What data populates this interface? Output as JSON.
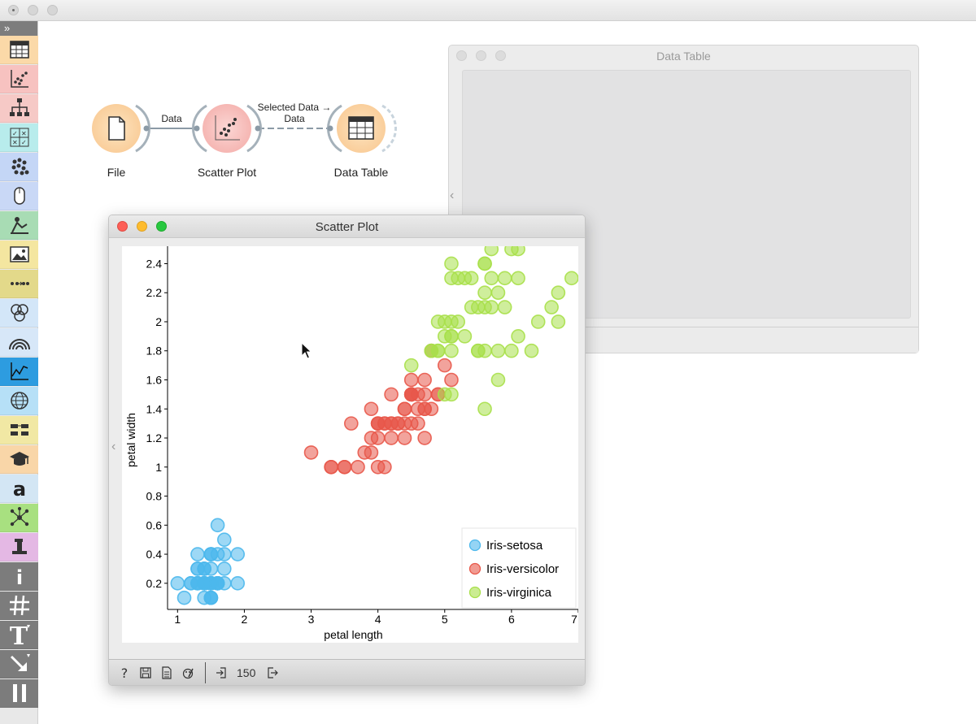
{
  "colors": {
    "setosa": "#4db8ec",
    "versicolor": "#e8584a",
    "virginica": "#a8e04a",
    "file_node": "#fbd9a8",
    "scatter_node": "#f7c2c0",
    "table_node": "#fbd9a8"
  },
  "canvas": {
    "nodes": [
      {
        "label": "File",
        "icon": "file-icon"
      },
      {
        "label": "Scatter Plot",
        "icon": "scatter-plot-icon"
      },
      {
        "label": "Data Table",
        "icon": "table-icon"
      }
    ],
    "links": [
      {
        "label": "Data"
      },
      {
        "label_line1": "Selected Data →",
        "label_line2": "Data"
      }
    ]
  },
  "data_table_window": {
    "title": "Data Table"
  },
  "scatter_window": {
    "title": "Scatter Plot",
    "footer": {
      "count": "150"
    }
  },
  "chart_data": {
    "type": "scatter",
    "xlabel": "petal length",
    "ylabel": "petal width",
    "xlim": [
      0.85,
      7.0
    ],
    "ylim": [
      0.02,
      2.52
    ],
    "xticks": [
      1,
      2,
      3,
      4,
      5,
      6,
      7
    ],
    "yticks": [
      0.2,
      0.4,
      0.6,
      0.8,
      1,
      1.2,
      1.4,
      1.6,
      1.8,
      2,
      2.2,
      2.4
    ],
    "legend_position": "bottom-right",
    "series": [
      {
        "name": "Iris-setosa",
        "points": [
          [
            1.4,
            0.2
          ],
          [
            1.4,
            0.2
          ],
          [
            1.3,
            0.2
          ],
          [
            1.5,
            0.2
          ],
          [
            1.4,
            0.2
          ],
          [
            1.7,
            0.4
          ],
          [
            1.4,
            0.3
          ],
          [
            1.5,
            0.2
          ],
          [
            1.4,
            0.2
          ],
          [
            1.5,
            0.1
          ],
          [
            1.5,
            0.2
          ],
          [
            1.6,
            0.2
          ],
          [
            1.4,
            0.1
          ],
          [
            1.1,
            0.1
          ],
          [
            1.2,
            0.2
          ],
          [
            1.5,
            0.4
          ],
          [
            1.3,
            0.4
          ],
          [
            1.4,
            0.3
          ],
          [
            1.7,
            0.3
          ],
          [
            1.5,
            0.3
          ],
          [
            1.7,
            0.2
          ],
          [
            1.5,
            0.4
          ],
          [
            1.0,
            0.2
          ],
          [
            1.7,
            0.5
          ],
          [
            1.9,
            0.2
          ],
          [
            1.6,
            0.2
          ],
          [
            1.6,
            0.4
          ],
          [
            1.5,
            0.2
          ],
          [
            1.4,
            0.2
          ],
          [
            1.6,
            0.2
          ],
          [
            1.6,
            0.2
          ],
          [
            1.5,
            0.4
          ],
          [
            1.5,
            0.1
          ],
          [
            1.4,
            0.2
          ],
          [
            1.5,
            0.1
          ],
          [
            1.2,
            0.2
          ],
          [
            1.3,
            0.2
          ],
          [
            1.5,
            0.1
          ],
          [
            1.3,
            0.2
          ],
          [
            1.5,
            0.2
          ],
          [
            1.3,
            0.3
          ],
          [
            1.3,
            0.3
          ],
          [
            1.3,
            0.2
          ],
          [
            1.6,
            0.6
          ],
          [
            1.9,
            0.4
          ],
          [
            1.4,
            0.3
          ],
          [
            1.6,
            0.2
          ],
          [
            1.4,
            0.2
          ],
          [
            1.5,
            0.2
          ],
          [
            1.4,
            0.2
          ]
        ]
      },
      {
        "name": "Iris-versicolor",
        "points": [
          [
            4.7,
            1.4
          ],
          [
            4.5,
            1.5
          ],
          [
            4.9,
            1.5
          ],
          [
            4.0,
            1.3
          ],
          [
            4.6,
            1.5
          ],
          [
            4.5,
            1.3
          ],
          [
            4.7,
            1.6
          ],
          [
            3.3,
            1.0
          ],
          [
            4.6,
            1.3
          ],
          [
            3.9,
            1.4
          ],
          [
            3.5,
            1.0
          ],
          [
            4.2,
            1.5
          ],
          [
            4.0,
            1.0
          ],
          [
            4.7,
            1.4
          ],
          [
            3.6,
            1.3
          ],
          [
            4.4,
            1.4
          ],
          [
            4.5,
            1.5
          ],
          [
            4.1,
            1.0
          ],
          [
            4.5,
            1.5
          ],
          [
            3.9,
            1.1
          ],
          [
            4.8,
            1.8
          ],
          [
            4.0,
            1.3
          ],
          [
            4.9,
            1.5
          ],
          [
            4.7,
            1.2
          ],
          [
            4.3,
            1.3
          ],
          [
            4.4,
            1.4
          ],
          [
            4.8,
            1.4
          ],
          [
            5.0,
            1.7
          ],
          [
            4.5,
            1.5
          ],
          [
            3.5,
            1.0
          ],
          [
            3.8,
            1.1
          ],
          [
            3.7,
            1.0
          ],
          [
            3.9,
            1.2
          ],
          [
            5.1,
            1.6
          ],
          [
            4.5,
            1.5
          ],
          [
            4.5,
            1.6
          ],
          [
            4.7,
            1.5
          ],
          [
            4.4,
            1.3
          ],
          [
            4.1,
            1.3
          ],
          [
            4.0,
            1.3
          ],
          [
            4.4,
            1.2
          ],
          [
            4.6,
            1.4
          ],
          [
            4.0,
            1.2
          ],
          [
            3.3,
            1.0
          ],
          [
            4.2,
            1.3
          ],
          [
            4.2,
            1.2
          ],
          [
            4.2,
            1.3
          ],
          [
            4.3,
            1.3
          ],
          [
            3.0,
            1.1
          ],
          [
            4.1,
            1.3
          ]
        ]
      },
      {
        "name": "Iris-virginica",
        "points": [
          [
            6.0,
            2.5
          ],
          [
            5.1,
            1.9
          ],
          [
            5.9,
            2.1
          ],
          [
            5.6,
            1.8
          ],
          [
            5.8,
            2.2
          ],
          [
            6.6,
            2.1
          ],
          [
            4.5,
            1.7
          ],
          [
            6.3,
            1.8
          ],
          [
            5.8,
            1.8
          ],
          [
            6.1,
            2.5
          ],
          [
            5.1,
            2.0
          ],
          [
            5.3,
            1.9
          ],
          [
            5.5,
            2.1
          ],
          [
            5.0,
            2.0
          ],
          [
            5.1,
            2.4
          ],
          [
            5.3,
            2.3
          ],
          [
            5.5,
            1.8
          ],
          [
            6.7,
            2.2
          ],
          [
            6.9,
            2.3
          ],
          [
            5.0,
            1.5
          ],
          [
            5.7,
            2.3
          ],
          [
            4.9,
            2.0
          ],
          [
            6.7,
            2.0
          ],
          [
            4.9,
            1.8
          ],
          [
            5.7,
            2.1
          ],
          [
            6.0,
            1.8
          ],
          [
            4.8,
            1.8
          ],
          [
            4.9,
            1.8
          ],
          [
            5.6,
            2.1
          ],
          [
            5.8,
            1.6
          ],
          [
            6.1,
            1.9
          ],
          [
            6.4,
            2.0
          ],
          [
            5.6,
            2.2
          ],
          [
            5.1,
            1.5
          ],
          [
            5.6,
            1.4
          ],
          [
            6.1,
            2.3
          ],
          [
            5.6,
            2.4
          ],
          [
            5.5,
            1.8
          ],
          [
            4.8,
            1.8
          ],
          [
            5.4,
            2.1
          ],
          [
            5.6,
            2.4
          ],
          [
            5.1,
            2.3
          ],
          [
            5.1,
            1.9
          ],
          [
            5.9,
            2.3
          ],
          [
            5.7,
            2.5
          ],
          [
            5.2,
            2.3
          ],
          [
            5.0,
            1.9
          ],
          [
            5.2,
            2.0
          ],
          [
            5.4,
            2.3
          ],
          [
            5.1,
            1.8
          ]
        ]
      }
    ]
  }
}
